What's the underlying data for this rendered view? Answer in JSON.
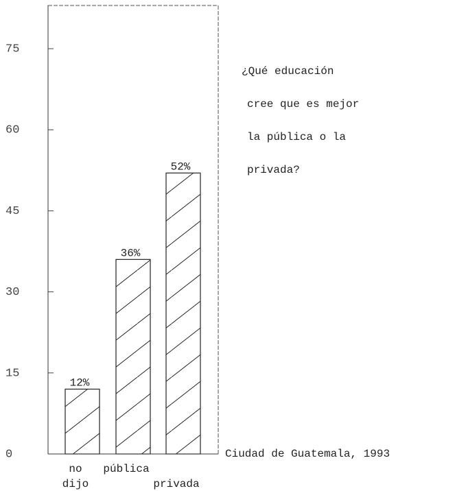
{
  "chart_data": {
    "type": "bar",
    "categories": [
      "no dijo",
      "pública",
      "privada"
    ],
    "values": [
      12,
      36,
      52
    ],
    "value_labels": [
      "12%",
      "36%",
      "52%"
    ],
    "ylim": [
      0,
      83
    ],
    "yticks": [
      0,
      15,
      30,
      45,
      60,
      75
    ],
    "question_lines": [
      "¿Qué educación",
      "cree que es mejor",
      "la pública o la",
      "privada?"
    ],
    "note": "Ciudad de Guatemala, 1993"
  }
}
